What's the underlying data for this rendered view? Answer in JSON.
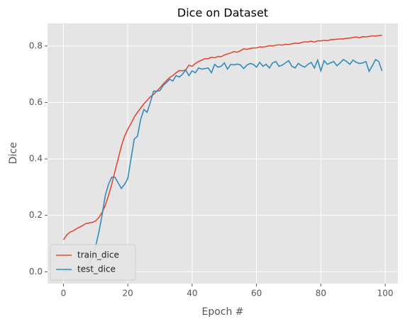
{
  "chart_data": {
    "type": "line",
    "title": "Dice on Dataset",
    "xlabel": "Epoch #",
    "ylabel": "Dice",
    "x": [
      0,
      1,
      2,
      3,
      4,
      5,
      6,
      7,
      8,
      9,
      10,
      11,
      12,
      13,
      14,
      15,
      16,
      17,
      18,
      19,
      20,
      21,
      22,
      23,
      24,
      25,
      26,
      27,
      28,
      29,
      30,
      31,
      32,
      33,
      34,
      35,
      36,
      37,
      38,
      39,
      40,
      41,
      42,
      43,
      44,
      45,
      46,
      47,
      48,
      49,
      50,
      51,
      52,
      53,
      54,
      55,
      56,
      57,
      58,
      59,
      60,
      61,
      62,
      63,
      64,
      65,
      66,
      67,
      68,
      69,
      70,
      71,
      72,
      73,
      74,
      75,
      76,
      77,
      78,
      79,
      80,
      81,
      82,
      83,
      84,
      85,
      86,
      87,
      88,
      89,
      90,
      91,
      92,
      93,
      94,
      95,
      96,
      97,
      98,
      99
    ],
    "series": [
      {
        "name": "train_dice",
        "color": "#E24A33",
        "values": [
          0.113,
          0.13,
          0.14,
          0.145,
          0.152,
          0.158,
          0.164,
          0.171,
          0.173,
          0.175,
          0.18,
          0.192,
          0.21,
          0.235,
          0.27,
          0.31,
          0.355,
          0.4,
          0.445,
          0.48,
          0.505,
          0.525,
          0.548,
          0.565,
          0.58,
          0.595,
          0.607,
          0.62,
          0.628,
          0.64,
          0.652,
          0.665,
          0.677,
          0.688,
          0.695,
          0.705,
          0.713,
          0.712,
          0.715,
          0.732,
          0.728,
          0.738,
          0.745,
          0.75,
          0.755,
          0.755,
          0.76,
          0.758,
          0.763,
          0.762,
          0.768,
          0.772,
          0.775,
          0.78,
          0.778,
          0.783,
          0.79,
          0.788,
          0.791,
          0.793,
          0.793,
          0.797,
          0.796,
          0.798,
          0.801,
          0.8,
          0.803,
          0.804,
          0.803,
          0.806,
          0.805,
          0.808,
          0.81,
          0.809,
          0.812,
          0.815,
          0.814,
          0.817,
          0.814,
          0.818,
          0.818,
          0.82,
          0.819,
          0.822,
          0.823,
          0.824,
          0.825,
          0.825,
          0.827,
          0.828,
          0.83,
          0.832,
          0.829,
          0.833,
          0.832,
          0.834,
          0.836,
          0.835,
          0.837,
          0.838
        ]
      },
      {
        "name": "test_dice",
        "color": "#348ABD",
        "values": [
          0.0,
          0.002,
          0.004,
          0.006,
          0.008,
          0.01,
          0.015,
          0.02,
          0.03,
          0.05,
          0.09,
          0.14,
          0.2,
          0.27,
          0.31,
          0.335,
          0.335,
          0.315,
          0.295,
          0.31,
          0.33,
          0.4,
          0.47,
          0.48,
          0.54,
          0.575,
          0.565,
          0.6,
          0.64,
          0.64,
          0.642,
          0.66,
          0.67,
          0.682,
          0.676,
          0.695,
          0.69,
          0.7,
          0.715,
          0.695,
          0.712,
          0.705,
          0.722,
          0.718,
          0.72,
          0.722,
          0.705,
          0.735,
          0.725,
          0.728,
          0.74,
          0.718,
          0.735,
          0.733,
          0.736,
          0.733,
          0.72,
          0.732,
          0.738,
          0.735,
          0.725,
          0.742,
          0.728,
          0.735,
          0.722,
          0.74,
          0.745,
          0.728,
          0.732,
          0.74,
          0.748,
          0.728,
          0.722,
          0.738,
          0.73,
          0.725,
          0.735,
          0.742,
          0.722,
          0.75,
          0.712,
          0.748,
          0.735,
          0.74,
          0.745,
          0.73,
          0.74,
          0.752,
          0.745,
          0.735,
          0.75,
          0.742,
          0.738,
          0.74,
          0.745,
          0.71,
          0.73,
          0.752,
          0.745,
          0.712
        ]
      }
    ],
    "xlim": [
      -4.95,
      103.95
    ],
    "xticks": [
      0,
      20,
      40,
      60,
      80,
      100
    ],
    "ylim": [
      -0.042,
      0.88
    ],
    "yticks": [
      {
        "value": 0,
        "label": "0.0"
      },
      0.2,
      0.4,
      0.6,
      0.8
    ],
    "grid": true,
    "legend": "lower left"
  }
}
